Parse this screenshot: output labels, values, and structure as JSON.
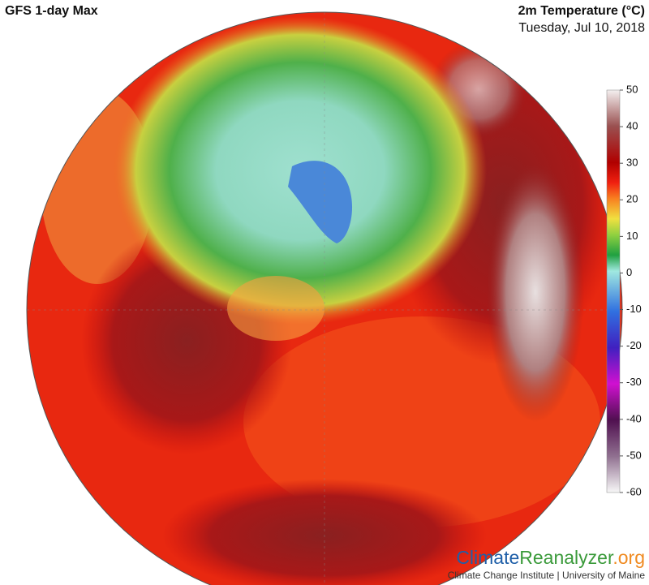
{
  "header": {
    "title": "GFS 1-day Max",
    "variable": "2m Temperature (°C)",
    "date": "Tuesday, Jul 10, 2018"
  },
  "colorbar": {
    "lim": [
      -60,
      50
    ],
    "ticks": [
      50,
      40,
      30,
      20,
      10,
      0,
      -10,
      -20,
      -30,
      -40,
      -50,
      -60
    ]
  },
  "footer": {
    "logo": [
      "Climate",
      "Reanalyzer",
      ".org"
    ],
    "credit": "Climate Change Institute | University of Maine"
  }
}
